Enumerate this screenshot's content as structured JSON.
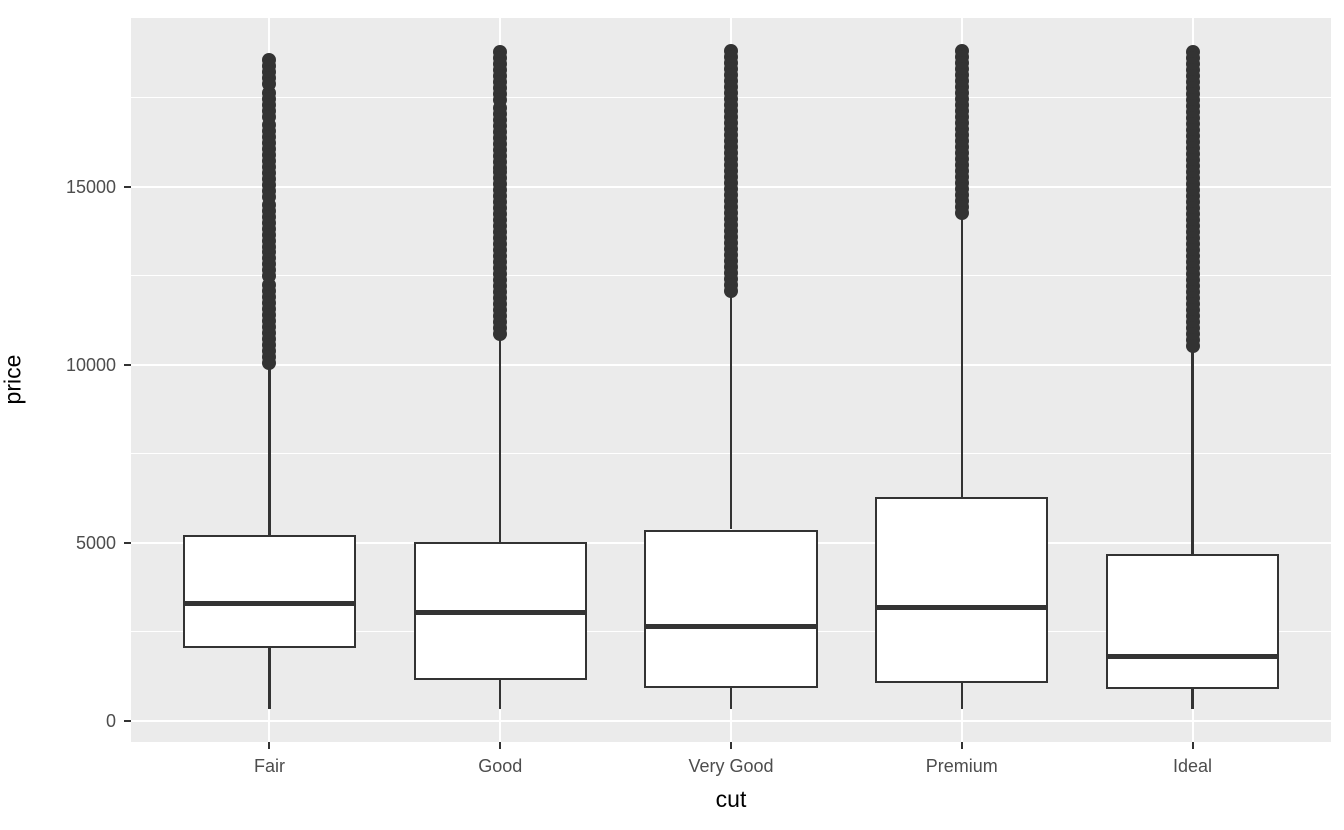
{
  "chart_data": {
    "type": "boxplot",
    "title": "",
    "xlabel": "cut",
    "ylabel": "price",
    "categories": [
      "Fair",
      "Good",
      "Very Good",
      "Premium",
      "Ideal"
    ],
    "y_major_ticks": [
      0,
      5000,
      10000,
      15000
    ],
    "y_major_tick_labels": [
      "0",
      "5000",
      "10000",
      "15000"
    ],
    "y_minor_ticks": [
      2500,
      7500,
      12500,
      17500
    ],
    "ylim": [
      -599,
      19748
    ],
    "grid": "major and minor horizontal white lines, vertical white line per category",
    "legend": "none",
    "series": [
      {
        "category": "Fair",
        "min": 337,
        "q1": 2050,
        "median": 3282,
        "q3": 5206,
        "upper_whisker": 9936,
        "max_outlier": 18574,
        "outlier_segments": [
          [
            9940,
            12240
          ],
          [
            12350,
            13170
          ],
          [
            13280,
            14490
          ],
          [
            14600,
            16730
          ],
          [
            16925,
            17630
          ],
          [
            17890,
            18574
          ]
        ]
      },
      {
        "category": "Good",
        "min": 327,
        "q1": 1145,
        "median": 3051,
        "q3": 5028,
        "upper_whisker": 10840,
        "max_outlier": 18788,
        "outlier_segments": [
          [
            10860,
            15430
          ],
          [
            15500,
            17230
          ],
          [
            17310,
            18788
          ]
        ]
      },
      {
        "category": "Very Good",
        "min": 336,
        "q1": 912,
        "median": 2648,
        "q3": 5373,
        "upper_whisker": 12050,
        "max_outlier": 18818,
        "outlier_segments": [
          [
            12070,
            18818
          ]
        ]
      },
      {
        "category": "Premium",
        "min": 326,
        "q1": 1046,
        "median": 3185,
        "q3": 6296,
        "upper_whisker": 14160,
        "max_outlier": 18823,
        "outlier_segments": [
          [
            14175,
            18823
          ]
        ]
      },
      {
        "category": "Ideal",
        "min": 326,
        "q1": 878,
        "median": 1810,
        "q3": 4679,
        "upper_whisker": 10370,
        "max_outlier": 18806,
        "outlier_segments": [
          [
            10380,
            18806
          ]
        ]
      }
    ],
    "colors": {
      "panel_bg": "#EBEBEB",
      "grid": "#FFFFFF",
      "box_stroke": "#333333",
      "box_fill": "#FFFFFF",
      "median": "#333333",
      "whisker": "#333333",
      "outlier": "#333333",
      "tick_mark": "#333333",
      "tick_label": "#4D4D4D",
      "axis_title": "#000000"
    }
  }
}
